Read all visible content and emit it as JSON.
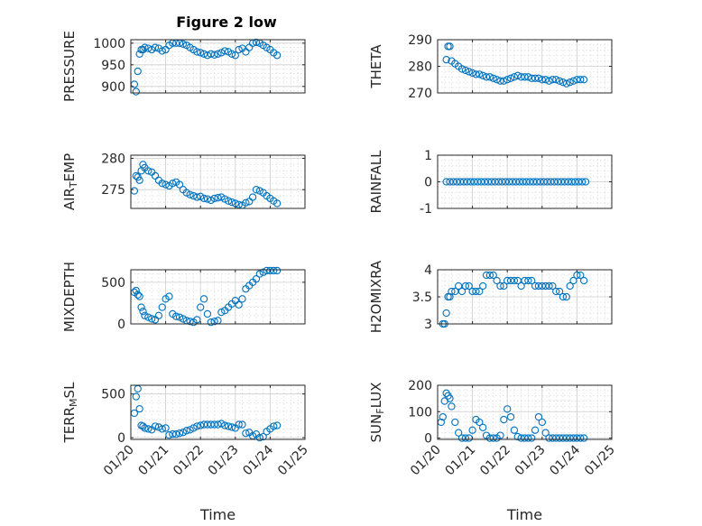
{
  "figure": {
    "title": "Figure 2 low",
    "marker_color": "#0072bd"
  },
  "chart_data": [
    {
      "type": "scatter",
      "title": "Figure 2 low",
      "xlabel": "",
      "ylabel": "PRESSURE",
      "xlim": [
        0,
        5
      ],
      "xticks": [
        "01/20",
        "01/21",
        "01/22",
        "01/23",
        "01/24",
        "01/25"
      ],
      "ylim": [
        885,
        1008
      ],
      "yticks": [
        900,
        950,
        1000
      ],
      "grid": true,
      "x": [
        0.1,
        0.15,
        0.2,
        0.25,
        0.3,
        0.35,
        0.4,
        0.5,
        0.6,
        0.7,
        0.8,
        0.9,
        1.0,
        1.1,
        1.2,
        1.3,
        1.4,
        1.5,
        1.6,
        1.7,
        1.8,
        1.9,
        2.0,
        2.1,
        2.2,
        2.3,
        2.4,
        2.5,
        2.6,
        2.7,
        2.8,
        2.9,
        3.0,
        3.1,
        3.2,
        3.3,
        3.4,
        3.5,
        3.6,
        3.7,
        3.8,
        3.9,
        4.0,
        4.1,
        4.2
      ],
      "values": [
        905,
        888,
        935,
        975,
        985,
        985,
        990,
        988,
        985,
        990,
        988,
        982,
        985,
        995,
        1000,
        1000,
        1000,
        998,
        995,
        990,
        985,
        980,
        978,
        975,
        972,
        975,
        973,
        975,
        978,
        982,
        980,
        975,
        972,
        985,
        988,
        980,
        990,
        1000,
        1002,
        1000,
        995,
        990,
        985,
        978,
        972
      ]
    },
    {
      "type": "scatter",
      "xlabel": "",
      "ylabel": "THETA",
      "xlim": [
        0,
        5
      ],
      "xticks": [
        "01/20",
        "01/21",
        "01/22",
        "01/23",
        "01/24",
        "01/25"
      ],
      "ylim": [
        270,
        290
      ],
      "yticks": [
        270,
        280,
        290
      ],
      "grid": true,
      "x": [
        0.25,
        0.3,
        0.35,
        0.4,
        0.5,
        0.6,
        0.7,
        0.8,
        0.9,
        1.0,
        1.1,
        1.2,
        1.3,
        1.4,
        1.5,
        1.6,
        1.7,
        1.8,
        1.9,
        2.0,
        2.1,
        2.2,
        2.3,
        2.4,
        2.5,
        2.6,
        2.7,
        2.8,
        2.9,
        3.0,
        3.1,
        3.2,
        3.3,
        3.4,
        3.5,
        3.6,
        3.7,
        3.8,
        3.9,
        4.0,
        4.1,
        4.2
      ],
      "values": [
        282.5,
        287.5,
        287.5,
        282,
        281,
        280,
        279,
        278.5,
        278,
        277.5,
        277,
        277,
        276.5,
        276,
        276,
        275.5,
        275,
        274.5,
        274.5,
        275,
        275.5,
        276,
        276.5,
        276,
        276,
        276,
        275.5,
        275.5,
        275.5,
        275,
        275,
        274.5,
        275,
        275,
        274.5,
        274,
        273.5,
        274,
        274.5,
        275,
        275,
        275
      ]
    },
    {
      "type": "scatter",
      "xlabel": "",
      "ylabel": "AIR_TEMP",
      "xlim": [
        0,
        5
      ],
      "xticks": [
        "01/20",
        "01/21",
        "01/22",
        "01/23",
        "01/24",
        "01/25"
      ],
      "ylim": [
        272,
        280.5
      ],
      "yticks": [
        275,
        280
      ],
      "grid": true,
      "x": [
        0.1,
        0.15,
        0.2,
        0.25,
        0.3,
        0.35,
        0.4,
        0.5,
        0.6,
        0.7,
        0.8,
        0.9,
        1.0,
        1.1,
        1.2,
        1.3,
        1.4,
        1.5,
        1.6,
        1.7,
        1.8,
        1.9,
        2.0,
        2.1,
        2.2,
        2.3,
        2.4,
        2.5,
        2.6,
        2.7,
        2.8,
        2.9,
        3.0,
        3.1,
        3.2,
        3.3,
        3.4,
        3.5,
        3.6,
        3.7,
        3.8,
        3.9,
        4.0,
        4.1,
        4.2
      ],
      "values": [
        274.8,
        277.2,
        277.0,
        276.5,
        278.0,
        279.0,
        278.5,
        278.0,
        277.8,
        277.2,
        276.5,
        276.0,
        275.8,
        275.6,
        276.0,
        276.2,
        275.8,
        275.0,
        274.5,
        274.2,
        274.0,
        273.8,
        273.9,
        273.6,
        273.5,
        273.3,
        273.6,
        273.7,
        273.8,
        273.5,
        273.2,
        273.0,
        272.8,
        272.6,
        272.5,
        272.9,
        273.1,
        273.8,
        275.0,
        274.8,
        274.5,
        274.0,
        273.6,
        273.2,
        272.8
      ]
    },
    {
      "type": "scatter",
      "xlabel": "",
      "ylabel": "RAINFALL",
      "xlim": [
        0,
        5
      ],
      "xticks": [
        "01/20",
        "01/21",
        "01/22",
        "01/23",
        "01/24",
        "01/25"
      ],
      "ylim": [
        -1,
        1
      ],
      "yticks": [
        -1,
        0,
        1
      ],
      "grid": true,
      "x": [
        0.25,
        0.35,
        0.45,
        0.55,
        0.65,
        0.75,
        0.85,
        0.95,
        1.05,
        1.15,
        1.25,
        1.35,
        1.45,
        1.55,
        1.65,
        1.75,
        1.85,
        1.95,
        2.05,
        2.15,
        2.25,
        2.35,
        2.45,
        2.55,
        2.65,
        2.75,
        2.85,
        2.95,
        3.05,
        3.15,
        3.25,
        3.35,
        3.45,
        3.55,
        3.65,
        3.75,
        3.85,
        3.95,
        4.05,
        4.15,
        4.25
      ],
      "values": [
        0,
        0,
        0,
        0,
        0,
        0,
        0,
        0,
        0,
        0,
        0,
        0,
        0,
        0,
        0,
        0,
        0,
        0,
        0,
        0,
        0,
        0,
        0,
        0,
        0,
        0,
        0,
        0,
        0,
        0,
        0,
        0,
        0,
        0,
        0,
        0,
        0,
        0,
        0,
        0,
        0
      ]
    },
    {
      "type": "scatter",
      "xlabel": "",
      "ylabel": "MIXDEPTH",
      "xlim": [
        0,
        5
      ],
      "xticks": [
        "01/20",
        "01/21",
        "01/22",
        "01/23",
        "01/24",
        "01/25"
      ],
      "ylim": [
        0,
        650
      ],
      "yticks": [
        0,
        500
      ],
      "grid": true,
      "x": [
        0.1,
        0.15,
        0.2,
        0.25,
        0.3,
        0.35,
        0.4,
        0.5,
        0.6,
        0.7,
        0.8,
        0.9,
        1.0,
        1.1,
        1.2,
        1.3,
        1.4,
        1.5,
        1.6,
        1.7,
        1.8,
        1.9,
        2.0,
        2.1,
        2.2,
        2.3,
        2.4,
        2.5,
        2.6,
        2.7,
        2.8,
        2.9,
        3.0,
        3.1,
        3.2,
        3.3,
        3.4,
        3.5,
        3.6,
        3.7,
        3.8,
        3.9,
        4.0,
        4.1,
        4.2
      ],
      "values": [
        380,
        400,
        350,
        330,
        200,
        150,
        100,
        80,
        60,
        50,
        100,
        200,
        300,
        330,
        120,
        90,
        80,
        60,
        40,
        30,
        20,
        50,
        200,
        300,
        120,
        20,
        30,
        40,
        140,
        160,
        200,
        240,
        280,
        230,
        300,
        420,
        460,
        500,
        540,
        600,
        620,
        640,
        640,
        640,
        640
      ]
    },
    {
      "type": "scatter",
      "xlabel": "",
      "ylabel": "H2OMIXRA",
      "xlim": [
        0,
        5
      ],
      "xticks": [
        "01/20",
        "01/21",
        "01/22",
        "01/23",
        "01/24",
        "01/25"
      ],
      "ylim": [
        3,
        4
      ],
      "yticks": [
        3,
        3.5,
        4
      ],
      "grid": true,
      "x": [
        0.15,
        0.2,
        0.25,
        0.3,
        0.35,
        0.4,
        0.5,
        0.6,
        0.7,
        0.8,
        0.9,
        1.0,
        1.1,
        1.2,
        1.3,
        1.4,
        1.5,
        1.6,
        1.7,
        1.8,
        1.9,
        2.0,
        2.1,
        2.2,
        2.3,
        2.4,
        2.5,
        2.6,
        2.7,
        2.8,
        2.9,
        3.0,
        3.1,
        3.2,
        3.3,
        3.4,
        3.5,
        3.6,
        3.7,
        3.8,
        3.9,
        4.0,
        4.1,
        4.2
      ],
      "values": [
        3.0,
        3.0,
        3.2,
        3.5,
        3.5,
        3.6,
        3.6,
        3.7,
        3.6,
        3.7,
        3.7,
        3.6,
        3.6,
        3.6,
        3.7,
        3.9,
        3.9,
        3.9,
        3.8,
        3.7,
        3.7,
        3.8,
        3.8,
        3.8,
        3.8,
        3.7,
        3.8,
        3.8,
        3.8,
        3.7,
        3.7,
        3.7,
        3.7,
        3.7,
        3.7,
        3.6,
        3.6,
        3.5,
        3.5,
        3.7,
        3.8,
        3.9,
        3.9,
        3.8
      ]
    },
    {
      "type": "scatter",
      "xlabel": "Time",
      "ylabel": "TERR_MSL",
      "xlim": [
        0,
        5
      ],
      "xticks": [
        "01/20",
        "01/21",
        "01/22",
        "01/23",
        "01/24",
        "01/25"
      ],
      "ylim": [
        -20,
        600
      ],
      "yticks": [
        0,
        500
      ],
      "grid": true,
      "x": [
        0.1,
        0.15,
        0.2,
        0.25,
        0.3,
        0.35,
        0.4,
        0.5,
        0.6,
        0.7,
        0.8,
        0.9,
        1.0,
        1.1,
        1.2,
        1.3,
        1.4,
        1.5,
        1.6,
        1.7,
        1.8,
        1.9,
        2.0,
        2.1,
        2.2,
        2.3,
        2.4,
        2.5,
        2.6,
        2.7,
        2.8,
        2.9,
        3.0,
        3.1,
        3.2,
        3.3,
        3.4,
        3.5,
        3.6,
        3.7,
        3.8,
        3.9,
        4.0,
        4.1,
        4.2
      ],
      "values": [
        280,
        470,
        560,
        330,
        140,
        130,
        110,
        100,
        90,
        130,
        120,
        100,
        110,
        30,
        40,
        40,
        50,
        60,
        80,
        90,
        110,
        130,
        140,
        150,
        150,
        150,
        150,
        150,
        160,
        140,
        130,
        120,
        110,
        150,
        150,
        50,
        60,
        20,
        40,
        0,
        10,
        70,
        100,
        130,
        140
      ]
    },
    {
      "type": "scatter",
      "xlabel": "Time",
      "ylabel": "SUN_FLUX",
      "xlim": [
        0,
        5
      ],
      "xticks": [
        "01/20",
        "01/21",
        "01/22",
        "01/23",
        "01/24",
        "01/25"
      ],
      "ylim": [
        -5,
        200
      ],
      "yticks": [
        0,
        100,
        200
      ],
      "grid": true,
      "x": [
        0.1,
        0.15,
        0.2,
        0.25,
        0.3,
        0.35,
        0.4,
        0.5,
        0.6,
        0.7,
        0.8,
        0.9,
        1.0,
        1.1,
        1.2,
        1.3,
        1.4,
        1.5,
        1.6,
        1.7,
        1.8,
        1.9,
        2.0,
        2.1,
        2.2,
        2.3,
        2.4,
        2.5,
        2.6,
        2.7,
        2.8,
        2.9,
        3.0,
        3.1,
        3.2,
        3.3,
        3.4,
        3.5,
        3.6,
        3.7,
        3.8,
        3.9,
        4.0,
        4.1,
        4.2
      ],
      "values": [
        60,
        80,
        140,
        170,
        160,
        150,
        120,
        60,
        20,
        0,
        0,
        0,
        30,
        70,
        60,
        40,
        10,
        0,
        0,
        0,
        10,
        70,
        110,
        80,
        30,
        5,
        0,
        0,
        0,
        0,
        30,
        80,
        60,
        20,
        0,
        0,
        0,
        0,
        0,
        0,
        0,
        0,
        0,
        0,
        0
      ]
    }
  ]
}
